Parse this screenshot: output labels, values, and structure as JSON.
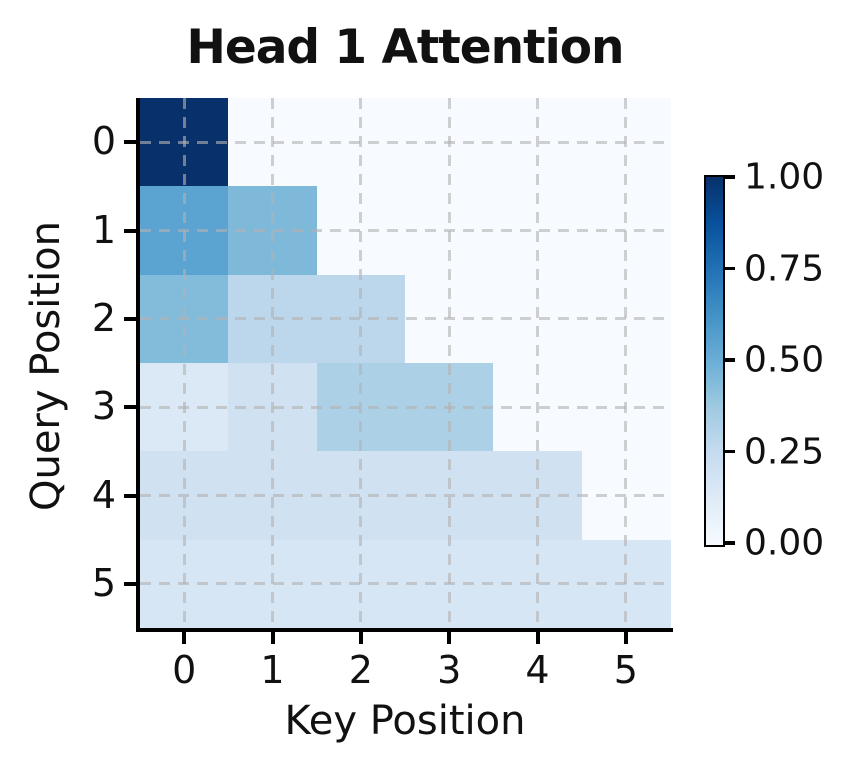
{
  "figure": {
    "title": "Head 1 Attention",
    "xlabel": "Key Position",
    "ylabel": "Query Position"
  },
  "axes": {
    "x_tick_labels": [
      "0",
      "1",
      "2",
      "3",
      "4",
      "5"
    ],
    "y_tick_labels": [
      "0",
      "1",
      "2",
      "3",
      "4",
      "5"
    ]
  },
  "colorbar": {
    "tick_labels": [
      "1.00",
      "0.75",
      "0.50",
      "0.25",
      "0.00"
    ]
  },
  "colors": {
    "background": "#ffffff",
    "spine": "#000000",
    "text": "#111111",
    "gridline": "#b2b2b2",
    "cmap_min": "#f7fbff",
    "cmap_max": "#08306b",
    "blues_stops": [
      "#f7fbff",
      "#deebf7",
      "#c6dbef",
      "#9ecae1",
      "#6baed6",
      "#4292c6",
      "#2171b5",
      "#08519c",
      "#08306b"
    ]
  },
  "chart_data": {
    "type": "heatmap",
    "title": "Head 1 Attention",
    "xlabel": "Key Position",
    "ylabel": "Query Position",
    "x_categories": [
      "0",
      "1",
      "2",
      "3",
      "4",
      "5"
    ],
    "y_categories": [
      "0",
      "1",
      "2",
      "3",
      "4",
      "5"
    ],
    "values": [
      [
        1.0,
        0.0,
        0.0,
        0.0,
        0.0,
        0.0
      ],
      [
        0.55,
        0.45,
        0.0,
        0.0,
        0.0,
        0.0
      ],
      [
        0.44,
        0.28,
        0.28,
        0.0,
        0.0,
        0.0
      ],
      [
        0.14,
        0.2,
        0.33,
        0.33,
        0.0,
        0.0
      ],
      [
        0.2,
        0.2,
        0.2,
        0.2,
        0.2,
        0.0
      ],
      [
        0.167,
        0.167,
        0.167,
        0.167,
        0.167,
        0.167
      ]
    ],
    "vmin": 0.0,
    "vmax": 1.0,
    "colormap": "Blues",
    "grid": true,
    "legend_position": "right-colorbar",
    "colorbar_ticks": [
      1.0,
      0.75,
      0.5,
      0.25,
      0.0
    ]
  }
}
